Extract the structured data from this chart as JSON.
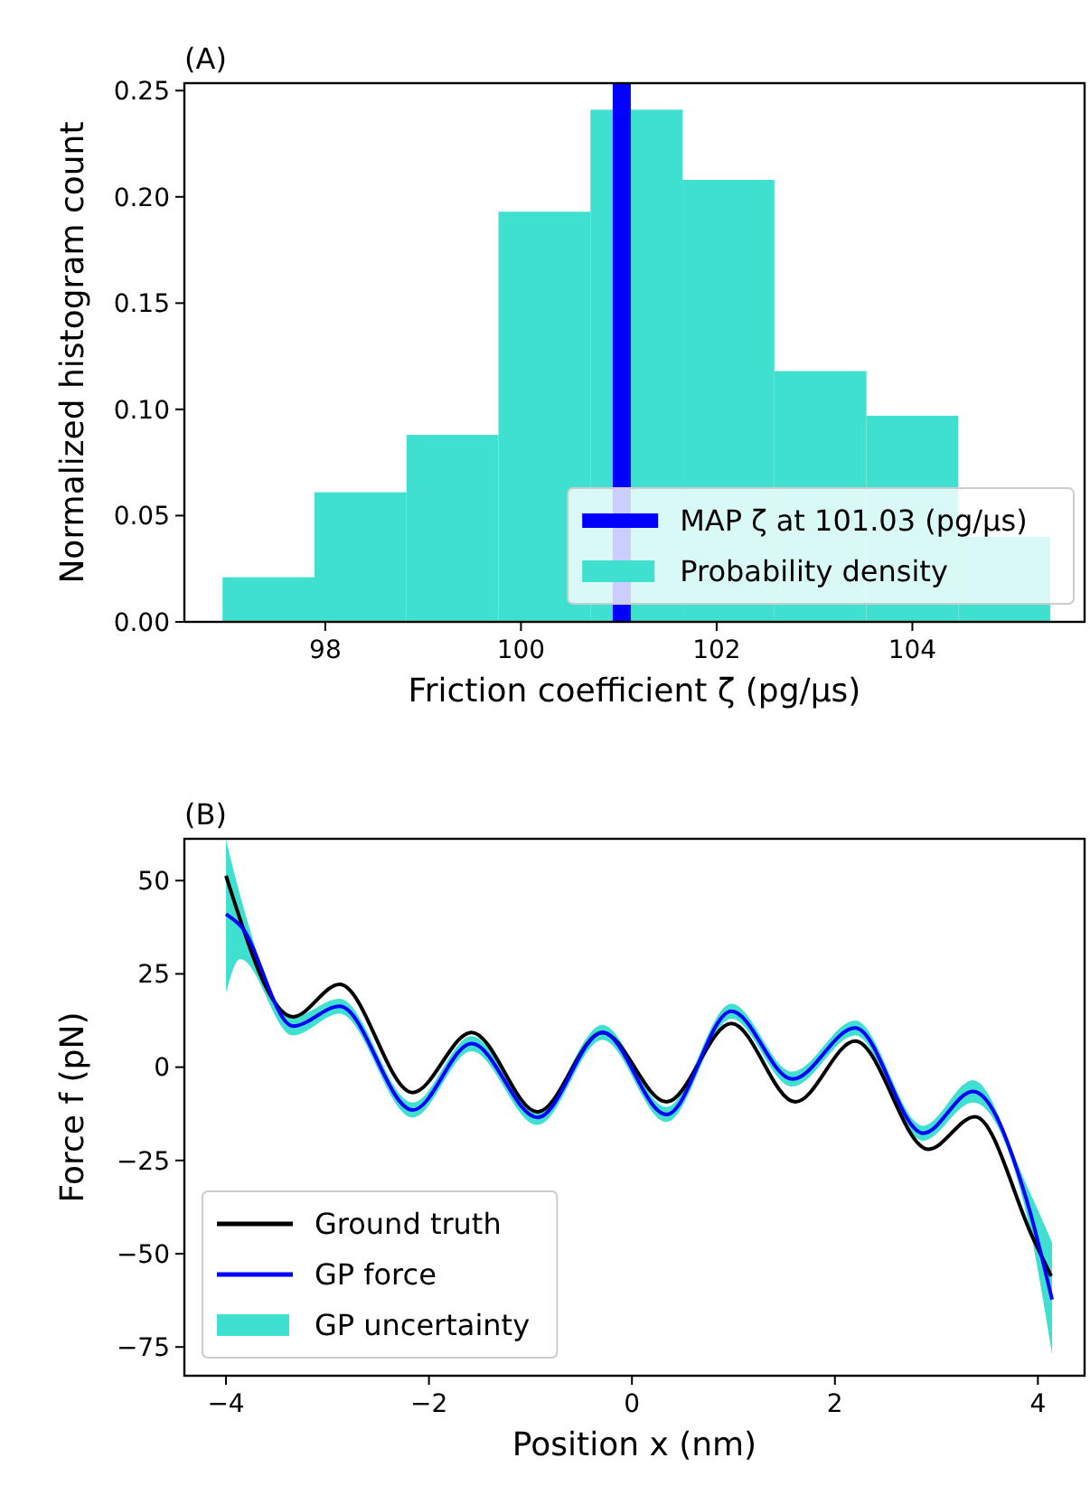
{
  "chart_data": [
    {
      "type": "histogram",
      "title": "(A)",
      "xlabel": "Friction coefficient ζ (pg/μs)",
      "ylabel": "Normalized histogram count",
      "bins": [
        96.95,
        97.89,
        98.83,
        99.77,
        100.71,
        101.65,
        102.59,
        103.53,
        104.47,
        105.41
      ],
      "series": [
        {
          "name": "Probability density",
          "color": "#40e0d0",
          "values": [
            0.021,
            0.061,
            0.088,
            0.193,
            0.241,
            0.208,
            0.118,
            0.097,
            0.04
          ]
        }
      ],
      "ref_lines": [
        {
          "axis": "x",
          "value": 101.03,
          "label": "MAP ζ at 101.03 (pg/μs)",
          "color": "#0000ff"
        }
      ],
      "xlim": [
        96.56,
        105.76
      ],
      "xticks": [
        98,
        100,
        102,
        104
      ],
      "ylim": [
        0,
        0.2535
      ],
      "yticks": [
        {
          "value": 0,
          "label": "0.00"
        },
        {
          "value": 0.05,
          "label": "0.05"
        },
        {
          "value": 0.1,
          "label": "0.10"
        },
        {
          "value": 0.15,
          "label": "0.15"
        },
        {
          "value": 0.2,
          "label": "0.20"
        },
        {
          "value": 0.25,
          "label": "0.25"
        }
      ],
      "legend": "bottom right",
      "grid": false
    },
    {
      "type": "line",
      "title": "(B)",
      "xlabel": "Position x (nm)",
      "ylabel": "Force f (pN)",
      "series": [
        {
          "name": "GP uncertainty",
          "type": "area",
          "color": "#40e0d0"
        },
        {
          "name": "Ground truth",
          "color": "#000000",
          "x": [
            -4,
            -3.34,
            -2.88,
            -2.16,
            -1.58,
            -0.93,
            -0.29,
            0.34,
            0.98,
            1.61,
            2.2,
            2.92,
            3.38,
            3.95,
            4.13
          ],
          "values": [
            51.3,
            13.5,
            22.2,
            -6.8,
            9.3,
            -12,
            9.3,
            -9.3,
            11.7,
            -9.3,
            7,
            -22,
            -13.3,
            -45.7,
            -56
          ]
        },
        {
          "name": "GP force",
          "color": "#0000ff",
          "x": [
            -4,
            -3.86,
            -3.34,
            -2.88,
            -2.16,
            -1.58,
            -0.93,
            -0.29,
            0.34,
            0.98,
            1.58,
            2.2,
            2.87,
            3.36,
            3.89,
            4.14
          ],
          "values": [
            41,
            38,
            11,
            16.3,
            -11.5,
            6.3,
            -13.5,
            9.3,
            -12.7,
            15,
            -3.2,
            10.5,
            -17.7,
            -6.5,
            -35.7,
            -62.3
          ],
          "lower": [
            20,
            29,
            8.5,
            14.3,
            -13.5,
            4.3,
            -15.5,
            7.3,
            -14.7,
            13,
            -5.2,
            8.5,
            -19.7,
            -9.5,
            -39.7,
            -77
          ],
          "upper": [
            61,
            46,
            13.5,
            18.3,
            -9.5,
            8.3,
            -11.5,
            11.3,
            -10.7,
            17,
            -1.2,
            12.5,
            -15.7,
            -3.5,
            -31.7,
            -47
          ]
        }
      ],
      "xlim": [
        -4.41,
        4.46
      ],
      "xticks": [
        {
          "value": -4,
          "label": "−4"
        },
        {
          "value": -2,
          "label": "−2"
        },
        0,
        2,
        4
      ],
      "ylim": [
        -82.7,
        61.2
      ],
      "yticks": [
        {
          "value": -75,
          "label": "−75"
        },
        {
          "value": -50,
          "label": "−50"
        },
        {
          "value": -25,
          "label": "−25"
        },
        0,
        25,
        50
      ],
      "legend": "bottom left",
      "grid": false,
      "line_style": "solid",
      "marker": "none"
    }
  ]
}
